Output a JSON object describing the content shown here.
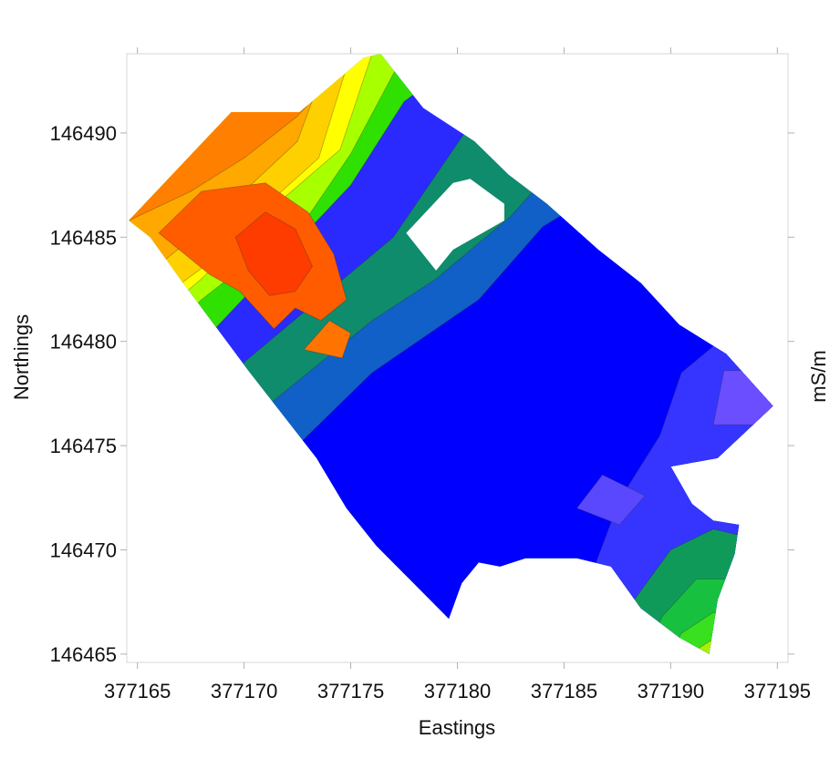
{
  "chart_data": {
    "type": "heatmap",
    "title": "",
    "xlabel": "Eastings",
    "ylabel": "Northings",
    "colorbar_label": "mS/m",
    "xlim": [
      377164.5,
      377195.5
    ],
    "ylim": [
      146464.6,
      146493.8
    ],
    "x_ticks": [
      377165,
      377170,
      377175,
      377180,
      377185,
      377190,
      377195
    ],
    "x_tick_labels": [
      "377165",
      "377170",
      "377175",
      "377180",
      "377185",
      "377190",
      "377195"
    ],
    "y_ticks": [
      146465,
      146470,
      146475,
      146480,
      146485,
      146490
    ],
    "y_tick_labels": [
      "146465",
      "146470",
      "146475",
      "146480",
      "146485",
      "146490"
    ],
    "grid": false,
    "colormap": [
      "#ff2a00",
      "#ff6a00",
      "#ffa500",
      "#ffd700",
      "#ffff00",
      "#b5ff00",
      "#33ee00",
      "#10c848",
      "#15a86c",
      "#1060c8",
      "#0000ff",
      "#3838ff",
      "#6a4eff",
      "#9a6bff"
    ],
    "survey_boundary": [
      [
        377164.6,
        146485.8
      ],
      [
        377169.4,
        146491.0
      ],
      [
        377172.6,
        146491.0
      ],
      [
        377175.6,
        146493.6
      ],
      [
        377176.4,
        146493.8
      ],
      [
        377178.4,
        146491.2
      ],
      [
        377180.8,
        146489.6
      ],
      [
        377182.4,
        146488.0
      ],
      [
        377184.2,
        146486.6
      ],
      [
        377186.6,
        146484.4
      ],
      [
        377188.6,
        146482.8
      ],
      [
        377190.4,
        146480.8
      ],
      [
        377192.6,
        146479.4
      ],
      [
        377194.8,
        146476.9
      ],
      [
        377192.2,
        146474.4
      ],
      [
        377190.0,
        146474.0
      ],
      [
        377191.0,
        146472.2
      ],
      [
        377192.0,
        146471.4
      ],
      [
        377193.2,
        146471.2
      ],
      [
        377193.0,
        146469.8
      ],
      [
        377192.2,
        146467.6
      ],
      [
        377191.8,
        146465.0
      ],
      [
        377190.4,
        146465.8
      ],
      [
        377188.6,
        146467.2
      ],
      [
        377187.2,
        146469.2
      ],
      [
        377185.6,
        146469.6
      ],
      [
        377183.2,
        146469.6
      ],
      [
        377182.0,
        146469.2
      ],
      [
        377181.0,
        146469.4
      ],
      [
        377180.2,
        146468.4
      ],
      [
        377179.6,
        146466.7
      ],
      [
        377176.2,
        146470.2
      ],
      [
        377174.8,
        146472.0
      ],
      [
        377173.4,
        146474.4
      ],
      [
        377170.2,
        146478.6
      ],
      [
        377167.0,
        146483.0
      ],
      [
        377165.6,
        146485.0
      ]
    ],
    "no_data_region": [
      [
        377177.6,
        146485.2
      ],
      [
        377179.8,
        146487.6
      ],
      [
        377180.6,
        146487.8
      ],
      [
        377182.2,
        146486.6
      ],
      [
        377182.2,
        146485.8
      ],
      [
        377179.8,
        146484.4
      ],
      [
        377179.0,
        146483.4
      ]
    ],
    "contour_bands": [
      {
        "color": "#0f8c6c",
        "polygon": [
          [
            377164,
            146472
          ],
          [
            377170,
            146479
          ],
          [
            377177,
            146485
          ],
          [
            377181,
            146491
          ],
          [
            377185,
            146493
          ],
          [
            377200,
            146493
          ],
          [
            377200,
            146463
          ],
          [
            377164,
            146463
          ]
        ]
      },
      {
        "color": "#1060c8",
        "polygon": [
          [
            377164,
            146468.5
          ],
          [
            377170,
            146476
          ],
          [
            377176,
            146481
          ],
          [
            377179,
            146483
          ],
          [
            377182.5,
            146486
          ],
          [
            377186,
            146490
          ],
          [
            377200,
            146490
          ],
          [
            377200,
            146463
          ],
          [
            377164,
            146463
          ]
        ]
      },
      {
        "color": "#0000ff",
        "polygon": [
          [
            377164,
            146466
          ],
          [
            377170,
            146472.5
          ],
          [
            377176,
            146478.5
          ],
          [
            377181,
            146482
          ],
          [
            377184,
            146485.5
          ],
          [
            377188,
            146488
          ],
          [
            377200,
            146488
          ],
          [
            377200,
            146463
          ],
          [
            377164,
            146463
          ]
        ]
      },
      {
        "color": "#3535ff",
        "polygon": [
          [
            377186,
            146463
          ],
          [
            377186.5,
            146469.4
          ],
          [
            377187.6,
            146472.4
          ],
          [
            377189.5,
            146475.5
          ],
          [
            377190.5,
            146478.5
          ],
          [
            377192.5,
            146480.2
          ],
          [
            377200,
            146480.2
          ],
          [
            377200,
            146463
          ]
        ]
      },
      {
        "color": "#6a4eff",
        "polygon": [
          [
            377192,
            146476
          ],
          [
            377192.5,
            146478.6
          ],
          [
            377194,
            146478.6
          ],
          [
            377196,
            146476.8
          ],
          [
            377196,
            146476
          ]
        ]
      },
      {
        "color": "#5a48ff",
        "polygon": [
          [
            377185.6,
            146472.0
          ],
          [
            377186.8,
            146473.6
          ],
          [
            377188.8,
            146472.6
          ],
          [
            377187.6,
            146471.2
          ]
        ]
      },
      {
        "color": "#109a5a",
        "polygon": [
          [
            377186,
            146463
          ],
          [
            377188,
            146467.2
          ],
          [
            377190,
            146470
          ],
          [
            377192,
            146471
          ],
          [
            377194,
            146470.5
          ],
          [
            377194,
            146463
          ]
        ]
      },
      {
        "color": "#18c040",
        "polygon": [
          [
            377188,
            146463
          ],
          [
            377189.6,
            146466.8
          ],
          [
            377191.2,
            146468.6
          ],
          [
            377193.4,
            146468.6
          ],
          [
            377194,
            146463
          ]
        ]
      },
      {
        "color": "#38e020",
        "polygon": [
          [
            377189,
            146463
          ],
          [
            377190.5,
            146466
          ],
          [
            377192,
            146467
          ],
          [
            377193.4,
            146466.5
          ],
          [
            377194,
            146463
          ]
        ]
      },
      {
        "color": "#aaf000",
        "polygon": [
          [
            377190,
            146463
          ],
          [
            377191.2,
            146465.2
          ],
          [
            377192.4,
            146466
          ],
          [
            377193.4,
            146465
          ],
          [
            377194,
            146463
          ]
        ]
      },
      {
        "color": "#30e000",
        "polygon": [
          [
            377164,
            146475.5
          ],
          [
            377169,
            146481
          ],
          [
            377175,
            146487.5
          ],
          [
            377177.5,
            146491.5
          ],
          [
            377180.5,
            146493.8
          ],
          [
            377200,
            146493.8
          ],
          [
            377164,
            146493.8
          ]
        ]
      },
      {
        "color": "#a8ff00",
        "polygon": [
          [
            377164,
            146478
          ],
          [
            377168,
            146482
          ],
          [
            377173,
            146486
          ],
          [
            377175,
            146489
          ],
          [
            377177.5,
            146493.8
          ],
          [
            377164,
            146493.8
          ]
        ]
      },
      {
        "color": "#ffff00",
        "polygon": [
          [
            377164,
            146479.5
          ],
          [
            377168,
            146483
          ],
          [
            377172,
            146487
          ],
          [
            377174.5,
            146489.2
          ],
          [
            377176,
            146493.8
          ],
          [
            377164,
            146493.8
          ]
        ]
      },
      {
        "color": "#ffd000",
        "polygon": [
          [
            377164,
            146480.5
          ],
          [
            377168,
            146483.5
          ],
          [
            377171,
            146486.5
          ],
          [
            377173.5,
            146488.8
          ],
          [
            377175,
            146493.8
          ],
          [
            377164,
            146493.8
          ]
        ]
      },
      {
        "color": "#ffa800",
        "polygon": [
          [
            377164,
            146482
          ],
          [
            377167,
            146484.5
          ],
          [
            377170,
            146487.2
          ],
          [
            377172.5,
            146489.6
          ],
          [
            377174,
            146493.8
          ],
          [
            377164,
            146493.8
          ]
        ]
      },
      {
        "color": "#ff8000",
        "polygon": [
          [
            377164.6,
            146485.8
          ],
          [
            377167.5,
            146487.2
          ],
          [
            377170,
            146488.8
          ],
          [
            377172.5,
            146490.8
          ],
          [
            377175.2,
            146493.8
          ],
          [
            377164,
            146493.8
          ]
        ]
      },
      {
        "color": "#ff5c00",
        "polygon": [
          [
            377166,
            146485.2
          ],
          [
            377168,
            146487.2
          ],
          [
            377171,
            146487.6
          ],
          [
            377173,
            146486.2
          ],
          [
            377174.2,
            146484.2
          ],
          [
            377174.8,
            146482
          ],
          [
            377173.6,
            146481
          ],
          [
            377172.4,
            146481.6
          ],
          [
            377171.4,
            146480.6
          ],
          [
            377169.8,
            146482.4
          ],
          [
            377168.4,
            146483.2
          ]
        ]
      },
      {
        "color": "#ff3c00",
        "polygon": [
          [
            377169.6,
            146485
          ],
          [
            377171,
            146486.2
          ],
          [
            377172.4,
            146485.4
          ],
          [
            377173.2,
            146483.6
          ],
          [
            377172.4,
            146482.4
          ],
          [
            377171.2,
            146482.2
          ],
          [
            377170.2,
            146483.4
          ]
        ]
      },
      {
        "color": "#ff7400",
        "polygon": [
          [
            377172.8,
            146479.6
          ],
          [
            377174,
            146481
          ],
          [
            377175,
            146480.4
          ],
          [
            377174.6,
            146479.2
          ]
        ]
      }
    ]
  }
}
